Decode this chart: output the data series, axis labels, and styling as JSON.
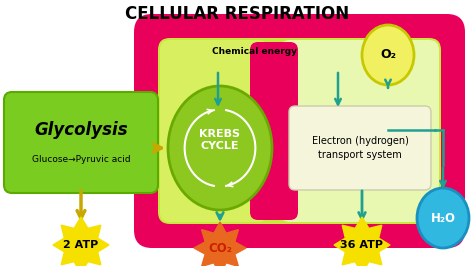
{
  "title": "CELLULAR RESPIRATION",
  "title_fontsize": 12,
  "bg_color": "#ffffff",
  "chemical_energy_label": "Chemical energy",
  "glycolysis_label": "Glycolysis",
  "glycolysis_sub": "Glucose→Pyruvic acid",
  "krebs_label": "KREBS\nCYCLE",
  "electron_label": "Electron (hydrogen)\ntransport system",
  "atp2_label": "2 ATP",
  "atp36_label": "36 ATP",
  "co2_label": "CO₂",
  "o2_label": "O₂",
  "h2o_label": "H₂O",
  "mito_outer_color": "#e8005a",
  "mito_inner_color": "#c8e840",
  "krebs_circle_color": "#8dc820",
  "krebs_circle_edge": "#6aaa00",
  "glycolysis_box_color": "#7acc20",
  "glycolysis_box_edge": "#5aaa00",
  "electron_box_color": "#f5f5dc",
  "electron_box_edge": "#ccccaa",
  "atp_blob_color": "#f5e000",
  "co2_blob_color": "#e86820",
  "o2_circle_color": "#f0f060",
  "o2_circle_edge": "#c8c800",
  "h2o_circle_color": "#30b8e0",
  "h2o_circle_edge": "#1890c0",
  "arrow_teal": "#20a090",
  "arrow_yellow": "#c8a800"
}
